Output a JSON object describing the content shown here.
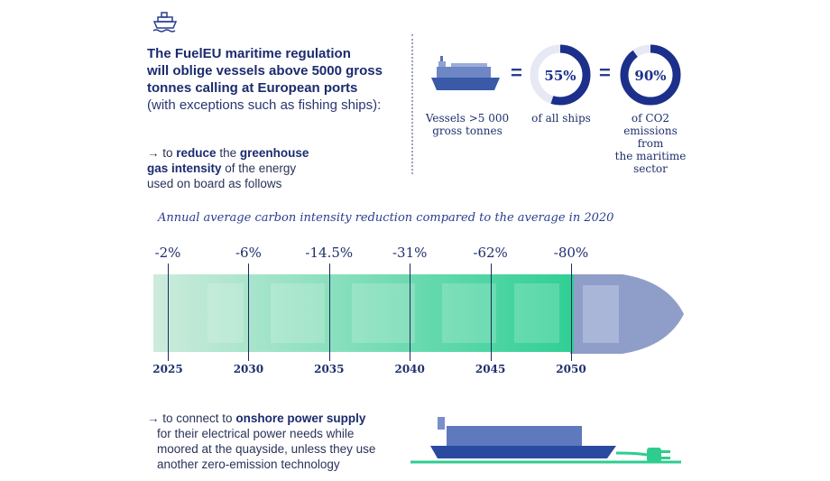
{
  "icons": {
    "header": "ship-icon"
  },
  "intro": {
    "line1": "The FuelEU maritime regulation",
    "line2": "will oblige vessels above 5000 gross",
    "line3": "tonnes calling at European ports",
    "line4": "(with exceptions such as fishing ships):"
  },
  "bullet1": {
    "arrow": "→",
    "pre": "to ",
    "bold1": "reduce",
    "mid": " the ",
    "bold2": "greenhouse gas intensity",
    "post": " of the energy used on board as follows"
  },
  "stats": {
    "vessels_caption_line1": "Vessels  >5 000",
    "vessels_caption_line2": "gross tonnes",
    "equals1": "=",
    "equals2": "=",
    "ring1": {
      "value": 55,
      "label": "55%",
      "caption": "of all ships"
    },
    "ring2": {
      "value": 90,
      "label": "90%",
      "caption_line1": "of CO2",
      "caption_line2": "emissions from",
      "caption_line3": "the maritime",
      "caption_line4": "sector"
    }
  },
  "chart_data": {
    "type": "bar",
    "title": "Annual average carbon intensity reduction compared to the average in 2020",
    "categories": [
      "2025",
      "2030",
      "2035",
      "2040",
      "2045",
      "2050"
    ],
    "values": [
      -2,
      -6,
      -14.5,
      -31,
      -62,
      -80
    ],
    "labels": [
      "-2%",
      "-6%",
      "-14.5%",
      "-31%",
      "-62%",
      "-80%"
    ],
    "xlim": [
      2024,
      2050
    ],
    "colors": {
      "bar_start": "#cdebdc",
      "bar_end": "#2fcf95",
      "hull": "#8e9ec8"
    }
  },
  "bullet2": {
    "arrow": "→",
    "pre": "to connect to ",
    "bold": "onshore power supply",
    "line2": "for their electrical power needs while",
    "line3": "moored at the quayside, unless they use",
    "line4": "another zero-emission technology"
  },
  "colors": {
    "navy": "#1c2f8a",
    "ring_track": "#e6e9f3",
    "green": "#2ecc8f"
  }
}
